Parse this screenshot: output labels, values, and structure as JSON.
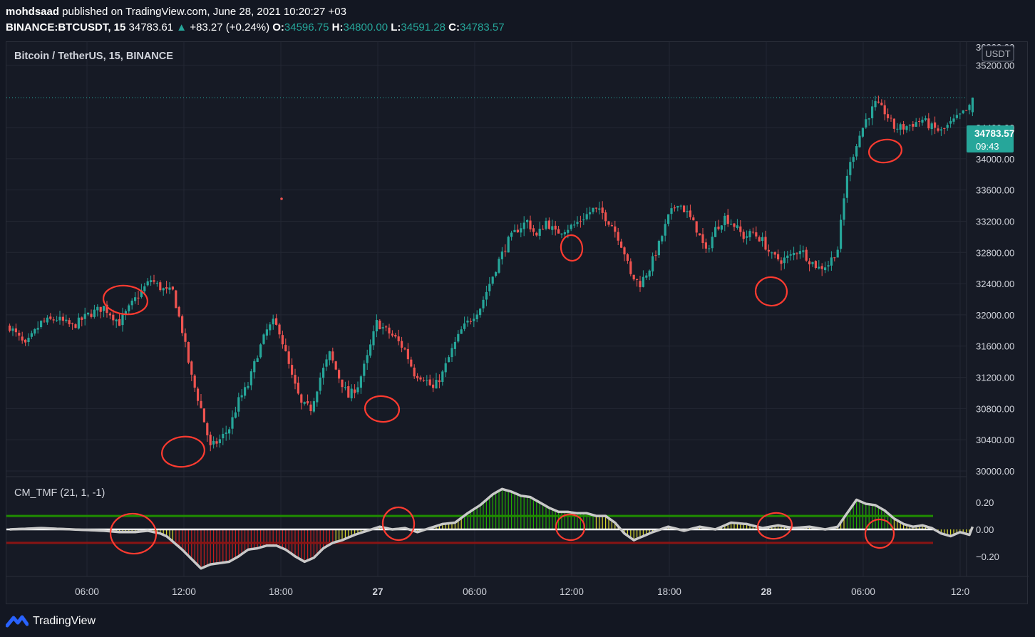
{
  "header": {
    "publisher": "mohdsaad",
    "published_text": " published on TradingView.com, June 28, 2021 10:20:27 +03",
    "symbol": "BINANCE:BTCUSDT, 15",
    "last": "34783.61",
    "change": "+83.27 (+0.24%)",
    "o_label": "O:",
    "o_value": "34596.75",
    "h_label": "H:",
    "h_value": "34800.00",
    "l_label": "L:",
    "l_value": "34591.28",
    "c_label": "C:",
    "c_value": "34783.57"
  },
  "main_pane": {
    "title": "Bitcoin / TetherUS, 15, BINANCE",
    "currency_badge": "USDT",
    "price_label": "34783.57",
    "countdown": "09:43"
  },
  "indicator": {
    "title": "CM_TMF (21, 1, -1)"
  },
  "footer": {
    "brand": "TradingView"
  },
  "colors": {
    "up": "#26a69a",
    "down": "#ef5350",
    "background": "#161a25",
    "grid": "#232733",
    "annotation": "#ff3b30",
    "tmf_positive_strong": "#22ab00",
    "tmf_mild": "#d8d82a",
    "tmf_negative": "#c41e1e"
  },
  "chart_data": [
    {
      "type": "candlestick",
      "title": "Bitcoin / TetherUS, 15, BINANCE",
      "interval": "15",
      "ylim": [
        29850,
        36050
      ],
      "y_ticks": [
        30000,
        30400,
        30800,
        31200,
        31600,
        32000,
        32400,
        32800,
        33200,
        33600,
        34000,
        34400,
        35200,
        35600
      ],
      "y_tick_labels": [
        "30000.00",
        "30400.00",
        "30800.00",
        "31200.00",
        "31600.00",
        "32000.00",
        "32400.00",
        "32800.00",
        "33200.00",
        "33600.00",
        "34000.00",
        "34400.00",
        "35200.00",
        "35600.00"
      ],
      "x_ticks": [
        "06:00",
        "12:00",
        "18:00",
        "27",
        "06:00",
        "12:00",
        "18:00",
        "28",
        "06:00",
        "12:0"
      ],
      "last_price": 34783.57,
      "grid": true,
      "approx_close_path": [
        [
          0,
          31850
        ],
        [
          5,
          31600
        ],
        [
          10,
          31900
        ],
        [
          15,
          31950
        ],
        [
          20,
          31850
        ],
        [
          25,
          32000
        ],
        [
          30,
          32100
        ],
        [
          35,
          31900
        ],
        [
          40,
          32200
        ],
        [
          45,
          32450
        ],
        [
          48,
          32350
        ],
        [
          50,
          32300
        ],
        [
          52,
          32300
        ],
        [
          55,
          31800
        ],
        [
          58,
          31200
        ],
        [
          61,
          30800
        ],
        [
          64,
          30300
        ],
        [
          67,
          30400
        ],
        [
          70,
          30550
        ],
        [
          73,
          30900
        ],
        [
          76,
          31100
        ],
        [
          79,
          31500
        ],
        [
          82,
          31800
        ],
        [
          84,
          31900
        ],
        [
          86,
          31800
        ],
        [
          88,
          31500
        ],
        [
          90,
          31200
        ],
        [
          93,
          30850
        ],
        [
          96,
          30800
        ],
        [
          99,
          31200
        ],
        [
          102,
          31500
        ],
        [
          105,
          31200
        ],
        [
          108,
          30950
        ],
        [
          111,
          31100
        ],
        [
          114,
          31450
        ],
        [
          117,
          31900
        ],
        [
          120,
          31800
        ],
        [
          123,
          31700
        ],
        [
          126,
          31550
        ],
        [
          129,
          31250
        ],
        [
          132,
          31200
        ],
        [
          135,
          31050
        ],
        [
          138,
          31250
        ],
        [
          141,
          31550
        ],
        [
          144,
          31800
        ],
        [
          147,
          31950
        ],
        [
          150,
          32100
        ],
        [
          153,
          32400
        ],
        [
          156,
          32700
        ],
        [
          159,
          32950
        ],
        [
          162,
          33100
        ],
        [
          165,
          33200
        ],
        [
          168,
          33000
        ],
        [
          171,
          33200
        ],
        [
          174,
          33050
        ],
        [
          177,
          33100
        ],
        [
          180,
          33150
        ],
        [
          183,
          33250
        ],
        [
          186,
          33350
        ],
        [
          189,
          33300
        ],
        [
          192,
          33150
        ],
        [
          194,
          33000
        ],
        [
          196,
          32800
        ],
        [
          198,
          32500
        ],
        [
          201,
          32400
        ],
        [
          204,
          32600
        ],
        [
          207,
          32900
        ],
        [
          210,
          33250
        ],
        [
          213,
          33450
        ],
        [
          216,
          33300
        ],
        [
          219,
          33100
        ],
        [
          222,
          32800
        ],
        [
          225,
          33100
        ],
        [
          228,
          33250
        ],
        [
          231,
          33150
        ],
        [
          234,
          33000
        ],
        [
          237,
          33050
        ],
        [
          240,
          32950
        ],
        [
          243,
          32750
        ],
        [
          246,
          32700
        ],
        [
          249,
          32750
        ],
        [
          252,
          32850
        ],
        [
          255,
          32700
        ],
        [
          258,
          32600
        ],
        [
          261,
          32650
        ],
        [
          264,
          32850
        ],
        [
          267,
          33800
        ],
        [
          270,
          34200
        ],
        [
          273,
          34500
        ],
        [
          276,
          34700
        ],
        [
          279,
          34600
        ],
        [
          282,
          34400
        ],
        [
          285,
          34400
        ],
        [
          288,
          34450
        ],
        [
          291,
          34500
        ],
        [
          294,
          34400
        ],
        [
          297,
          34350
        ],
        [
          300,
          34450
        ],
        [
          303,
          34550
        ],
        [
          306,
          34650
        ],
        [
          307,
          34783.57
        ]
      ]
    },
    {
      "type": "bar",
      "title": "CM_TMF (21, 1, -1)",
      "ylim": [
        -0.36,
        0.34
      ],
      "y_ticks": [
        0.2,
        0.0,
        -0.2
      ],
      "y_tick_labels": [
        "0.20",
        "0.00",
        "−0.20"
      ],
      "levels": [
        0.1,
        0.0,
        -0.1
      ],
      "approx_tmf_path": [
        [
          0,
          0.0
        ],
        [
          10,
          0.01
        ],
        [
          20,
          0.0
        ],
        [
          30,
          -0.01
        ],
        [
          35,
          -0.02
        ],
        [
          40,
          -0.02
        ],
        [
          44,
          -0.01
        ],
        [
          48,
          -0.03
        ],
        [
          50,
          -0.05
        ],
        [
          52,
          -0.09
        ],
        [
          55,
          -0.15
        ],
        [
          58,
          -0.22
        ],
        [
          61,
          -0.29
        ],
        [
          64,
          -0.26
        ],
        [
          67,
          -0.25
        ],
        [
          70,
          -0.24
        ],
        [
          73,
          -0.2
        ],
        [
          76,
          -0.15
        ],
        [
          79,
          -0.14
        ],
        [
          82,
          -0.12
        ],
        [
          85,
          -0.12
        ],
        [
          88,
          -0.15
        ],
        [
          91,
          -0.2
        ],
        [
          94,
          -0.24
        ],
        [
          97,
          -0.21
        ],
        [
          100,
          -0.14
        ],
        [
          103,
          -0.1
        ],
        [
          106,
          -0.08
        ],
        [
          110,
          -0.04
        ],
        [
          114,
          -0.01
        ],
        [
          118,
          0.02
        ],
        [
          122,
          0.0
        ],
        [
          126,
          0.01
        ],
        [
          130,
          -0.02
        ],
        [
          134,
          0.01
        ],
        [
          138,
          0.04
        ],
        [
          142,
          0.05
        ],
        [
          146,
          0.12
        ],
        [
          150,
          0.18
        ],
        [
          154,
          0.26
        ],
        [
          157,
          0.3
        ],
        [
          160,
          0.28
        ],
        [
          163,
          0.25
        ],
        [
          166,
          0.24
        ],
        [
          169,
          0.2
        ],
        [
          172,
          0.16
        ],
        [
          175,
          0.13
        ],
        [
          178,
          0.13
        ],
        [
          181,
          0.12
        ],
        [
          184,
          0.12
        ],
        [
          187,
          0.1
        ],
        [
          190,
          0.1
        ],
        [
          193,
          0.05
        ],
        [
          196,
          -0.03
        ],
        [
          199,
          -0.08
        ],
        [
          202,
          -0.05
        ],
        [
          205,
          -0.02
        ],
        [
          210,
          0.02
        ],
        [
          215,
          -0.01
        ],
        [
          220,
          0.02
        ],
        [
          225,
          0.0
        ],
        [
          230,
          0.05
        ],
        [
          235,
          0.04
        ],
        [
          240,
          0.01
        ],
        [
          245,
          0.03
        ],
        [
          250,
          0.01
        ],
        [
          255,
          0.02
        ],
        [
          260,
          0.0
        ],
        [
          264,
          0.02
        ],
        [
          267,
          0.12
        ],
        [
          270,
          0.22
        ],
        [
          273,
          0.19
        ],
        [
          276,
          0.18
        ],
        [
          279,
          0.14
        ],
        [
          282,
          0.08
        ],
        [
          285,
          0.04
        ],
        [
          288,
          0.02
        ],
        [
          291,
          0.03
        ],
        [
          294,
          0.01
        ],
        [
          297,
          -0.03
        ],
        [
          300,
          -0.05
        ],
        [
          303,
          -0.02
        ],
        [
          306,
          -0.04
        ],
        [
          307,
          0.02
        ]
      ]
    }
  ]
}
